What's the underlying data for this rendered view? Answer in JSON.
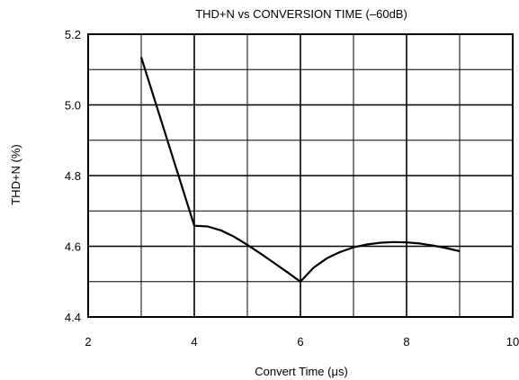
{
  "chart_data": {
    "type": "line",
    "title": "THD+N vs CONVERSION TIME (–60dB)",
    "xlabel": "Convert Time (μs)",
    "ylabel": "THD+N (%)",
    "xlim": [
      2,
      10
    ],
    "ylim": [
      4.4,
      5.2
    ],
    "x_ticks": [
      2,
      4,
      6,
      8,
      10
    ],
    "x_tick_labels": [
      "2",
      "4",
      "6",
      "8",
      "10"
    ],
    "y_ticks": [
      4.4,
      4.6,
      4.8,
      5.0,
      5.2
    ],
    "y_tick_labels": [
      "4.4",
      "4.6",
      "4.8",
      "5.0",
      "5.2"
    ],
    "x_minor_step": 1,
    "y_minor_step": 0.1,
    "grid": true,
    "legend": "none",
    "line_color": "#000000",
    "series": [
      {
        "x": [
          3.0,
          4.0,
          4.25,
          4.5,
          4.75,
          5.0,
          5.25,
          5.5,
          5.75,
          6.0,
          6.25,
          6.5,
          6.75,
          7.0,
          7.25,
          7.5,
          7.75,
          8.0,
          8.25,
          8.5,
          8.75,
          9.0
        ],
        "values": [
          5.135,
          4.658,
          4.656,
          4.645,
          4.627,
          4.604,
          4.579,
          4.553,
          4.527,
          4.5,
          4.54,
          4.566,
          4.584,
          4.597,
          4.605,
          4.61,
          4.612,
          4.611,
          4.608,
          4.602,
          4.595,
          4.586
        ]
      }
    ]
  }
}
